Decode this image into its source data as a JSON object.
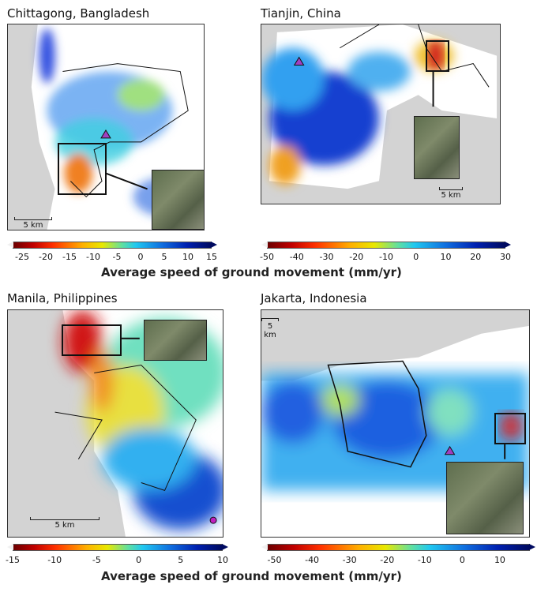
{
  "panels": [
    {
      "title": "Chittagong, Bangladesh",
      "scale": "5 km"
    },
    {
      "title": "Tianjin, China",
      "scale": "5 km"
    },
    {
      "title": "Manila, Philippines",
      "scale": "5 km"
    },
    {
      "title": "Jakarta, Indonesia",
      "scale": "5 km"
    }
  ],
  "colorbars": [
    {
      "name": "chittagong",
      "range": [
        -27,
        15
      ],
      "ticks": [
        "-25",
        "-20",
        "-15",
        "-10",
        "-5",
        "0",
        "5",
        "10",
        "15"
      ]
    },
    {
      "name": "tianjin",
      "range": [
        -50,
        30
      ],
      "ticks": [
        "-50",
        "-40",
        "-30",
        "-20",
        "-10",
        "0",
        "10",
        "20",
        "30"
      ]
    },
    {
      "name": "manila",
      "range": [
        -15,
        10
      ],
      "ticks": [
        "-15",
        "-10",
        "-5",
        "0",
        "5",
        "10"
      ]
    },
    {
      "name": "jakarta",
      "range": [
        -52,
        18
      ],
      "ticks": [
        "-50",
        "-40",
        "-30",
        "-20",
        "-10",
        "0",
        "10"
      ]
    }
  ],
  "axis_label": "Average speed of ground movement (mm/yr)",
  "colors": {
    "land": "#d3d3d3",
    "high_subsidence": "#d01010",
    "stable": "#1040d0"
  }
}
